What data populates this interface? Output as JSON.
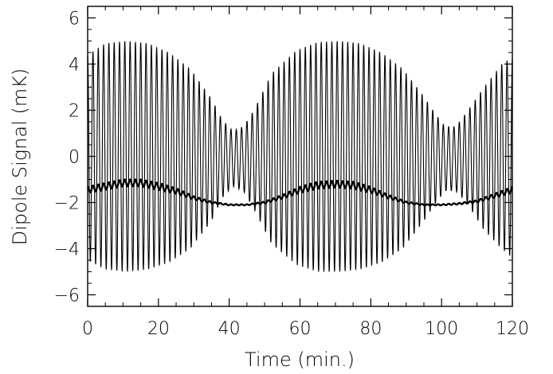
{
  "chart_data": {
    "type": "line",
    "title": "",
    "xlabel": "Time (min.)",
    "ylabel": "Dipole Signal (mK)",
    "xlim": [
      0,
      120
    ],
    "ylim": [
      -6.5,
      6.5
    ],
    "x_ticks": [
      0,
      20,
      40,
      60,
      80,
      100,
      120
    ],
    "y_ticks": [
      -6,
      -4,
      -2,
      0,
      2,
      4,
      6
    ],
    "x_tick_labels": [
      "0",
      "20",
      "40",
      "60",
      "80",
      "100",
      "120"
    ],
    "y_tick_labels": [
      "−6",
      "−4",
      "−2",
      "0",
      "2",
      "4",
      "6"
    ],
    "grid": false,
    "legend": "none",
    "series": [
      {
        "style": "thin",
        "color": "#000000",
        "description": "Fast oscillation (period ~1.5 min) with slowly modulated envelope",
        "oscillation_period_min": 1.5,
        "envelope": {
          "x": [
            0,
            5,
            11,
            17,
            23,
            29,
            35,
            38,
            41,
            44,
            47,
            52,
            59,
            65,
            71,
            77,
            83,
            89,
            95,
            98,
            101,
            104,
            107,
            112,
            117,
            120
          ],
          "upper": [
            4.4,
            4.9,
            5.0,
            4.9,
            4.5,
            3.8,
            2.5,
            1.6,
            1.1,
            1.3,
            2.0,
            3.6,
            4.6,
            4.95,
            5.0,
            4.9,
            4.5,
            3.8,
            2.6,
            1.9,
            1.3,
            1.3,
            1.9,
            3.0,
            4.0,
            4.3
          ],
          "lower": [
            -4.5,
            -4.9,
            -5.0,
            -4.9,
            -4.6,
            -4.0,
            -2.8,
            -1.8,
            -1.3,
            -1.5,
            -2.3,
            -3.8,
            -4.7,
            -5.0,
            -5.0,
            -4.9,
            -4.6,
            -4.0,
            -2.8,
            -2.1,
            -1.5,
            -1.5,
            -2.0,
            -3.2,
            -4.0,
            -4.4
          ]
        }
      },
      {
        "style": "thick",
        "color": "#000000",
        "description": "Slow baseline with small ripple",
        "ripple_period_min": 1.5,
        "ripple_amplitude_mK": 0.15,
        "x": [
          0,
          5,
          10,
          15,
          20,
          25,
          30,
          35,
          40,
          45,
          50,
          55,
          60,
          65,
          70,
          75,
          80,
          85,
          90,
          95,
          100,
          105,
          110,
          115,
          120
        ],
        "y": [
          -1.45,
          -1.3,
          -1.15,
          -1.15,
          -1.3,
          -1.5,
          -1.8,
          -2.0,
          -2.1,
          -2.1,
          -2.0,
          -1.75,
          -1.45,
          -1.25,
          -1.2,
          -1.25,
          -1.45,
          -1.75,
          -2.0,
          -2.1,
          -2.1,
          -2.05,
          -1.95,
          -1.7,
          -1.45
        ]
      }
    ]
  }
}
